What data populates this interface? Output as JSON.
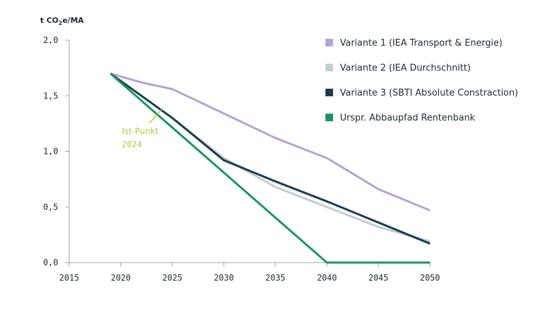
{
  "chart_data": {
    "type": "line",
    "ylabel_parts": [
      "t CO",
      "2",
      "e/MA"
    ],
    "xlabel": "",
    "xlim": [
      2015,
      2050
    ],
    "ylim": [
      0,
      2
    ],
    "x_ticks": [
      2015,
      2020,
      2025,
      2030,
      2035,
      2040,
      2045,
      2050
    ],
    "y_ticks": [
      0,
      0.5,
      1,
      1.5,
      2
    ],
    "y_tick_labels": [
      "0,0",
      "0,5",
      "1,0",
      "1,5",
      "2,0"
    ],
    "grid": false,
    "legend_position": "top-right",
    "series": [
      {
        "name": "Variante 1 (IEA Transport & Energie)",
        "color": "#b3a2d6",
        "x": [
          2019,
          2022,
          2025,
          2030,
          2035,
          2040,
          2045,
          2050
        ],
        "y": [
          1.7,
          1.62,
          1.56,
          1.34,
          1.12,
          0.94,
          0.66,
          0.47
        ]
      },
      {
        "name": "Variante 2 (IEA Durchschnitt)",
        "color": "#c3cccf",
        "x": [
          2019,
          2025,
          2030,
          2035,
          2040,
          2045,
          2050
        ],
        "y": [
          1.7,
          1.3,
          0.94,
          0.68,
          0.5,
          0.32,
          0.19
        ]
      },
      {
        "name": "Variante 3 (SBTI Absolute Constraction)",
        "color": "#183e4d",
        "x": [
          2019,
          2025,
          2030,
          2035,
          2040,
          2045,
          2050
        ],
        "y": [
          1.7,
          1.3,
          0.92,
          0.73,
          0.55,
          0.36,
          0.17
        ]
      },
      {
        "name": "Urspr. Abbaupfad Rentenbank",
        "color": "#17965e",
        "x": [
          2019,
          2040,
          2050
        ],
        "y": [
          1.7,
          0,
          0
        ]
      }
    ],
    "annotations": [
      {
        "label": "Ist-Punkt",
        "year_label": "2024",
        "x": 2024,
        "y": 1.38,
        "color": "#b8c93a"
      }
    ]
  }
}
